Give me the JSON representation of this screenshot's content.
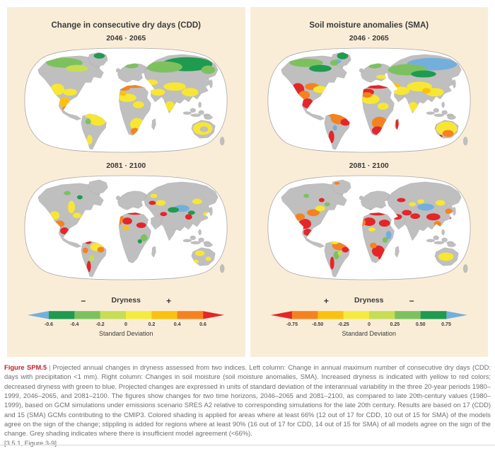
{
  "figure": {
    "columns": [
      {
        "title": "Change in consecutive dry days (CDD)",
        "maps": [
          {
            "period": "2046 · 2065"
          },
          {
            "period": "2081 · 2100"
          }
        ],
        "colorbar": {
          "sign_left": "−",
          "title": "Dryness",
          "sign_right": "+",
          "ticks": [
            "-0.6",
            "-0.4",
            "-0.2",
            "0",
            "0.2",
            "0.4",
            "0.6"
          ],
          "segment_colors": [
            "#1E9B4F",
            "#7DC15F",
            "#C6DD55",
            "#F5EB3E",
            "#FCC10E",
            "#F58220"
          ],
          "arrow_left_color": "#74AFDC",
          "arrow_right_color": "#E62528",
          "axis_label": "Standard Deviation"
        }
      },
      {
        "title": "Soil moisture anomalies (SMA)",
        "maps": [
          {
            "period": "2046 · 2065"
          },
          {
            "period": "2081 · 2100"
          }
        ],
        "colorbar": {
          "sign_left": "+",
          "title": "Dryness",
          "sign_right": "−",
          "ticks": [
            "-0.75",
            "-0.50",
            "-0.25",
            "0",
            "0.25",
            "0.50",
            "0.75"
          ],
          "segment_colors": [
            "#F58220",
            "#FCC10E",
            "#F5EB3E",
            "#C6DD55",
            "#7DC15F",
            "#1E9B4F"
          ],
          "arrow_left_color": "#E62528",
          "arrow_right_color": "#74AFDC",
          "axis_label": "Standard Deviation"
        }
      }
    ]
  },
  "caption": {
    "label": "Figure SPM.5",
    "separator": "|",
    "text": "Projected annual changes in dryness assessed from two indices. Left column: Change in annual maximum number of consecutive dry days (CDD: days with precipitation <1 mm). Right column: Changes in soil moisture (soil moisture anomalies, SMA). Increased dryness is indicated with yellow to red colors; decreased dryness with green to blue. Projected changes are expressed in units of standard deviation of the interannual variability in the three 20-year periods 1980–1999, 2046–2065, and 2081–2100. The figures show changes for two time horizons, 2046–2065 and 2081–2100, as compared to late 20th-century values (1980–1999), based on GCM simulations under emissions scenario SRES A2 relative to corresponding simulations for the late 20th century. Results are based on 17 (CDD) and 15 (SMA) GCMs contributing to the CMIP3. Colored shading is applied for areas where at least 66% (12 out of 17 for CDD, 10 out of 15 for SMA) of the models agree on the sign of the change; stippling is added for regions where at least 90% (16 out of 17 for CDD, 14 out of 15 for SMA) of all models agree on the sign of the change. Grey shading indicates where there is insufficient model agreement (<66%).",
    "reference": "[3.5.1, Figure 3-9]"
  },
  "chart_data": {
    "type": "heatmap",
    "title": "Projected annual changes in dryness (standard deviation units)",
    "scales": [
      {
        "panel": "CDD",
        "range": [
          -0.6,
          0.6
        ],
        "step": 0.2,
        "increase_dryness": "yellow-to-red (positive)",
        "decrease_dryness": "green-to-blue (negative)"
      },
      {
        "panel": "SMA",
        "range": [
          -0.75,
          0.75
        ],
        "step": 0.25,
        "increase_dryness": "yellow-to-red (negative)",
        "decrease_dryness": "green-to-blue (positive)"
      }
    ],
    "palette": {
      "DG": "#1E9B4F",
      "G": "#7DC15F",
      "LG": "#C6DD55",
      "Y": "#F7E733",
      "GO": "#FCC10E",
      "O": "#F58220",
      "R": "#E62528",
      "B": "#74AFDC",
      "LAND": "#BFBFBF"
    },
    "maps": [
      {
        "name": "CDD 2046-2065",
        "patches": [
          [
            238,
            26,
            36,
            10,
            "DG"
          ],
          [
            205,
            30,
            26,
            8,
            "G"
          ],
          [
            158,
            28,
            10,
            4,
            "G"
          ],
          [
            268,
            34,
            10,
            6,
            "G"
          ],
          [
            62,
            24,
            26,
            7,
            "G"
          ],
          [
            80,
            32,
            16,
            5,
            "LG"
          ],
          [
            112,
            14,
            8,
            4,
            "DG"
          ],
          [
            52,
            62,
            10,
            8,
            "Y"
          ],
          [
            70,
            66,
            10,
            5,
            "Y"
          ],
          [
            62,
            80,
            8,
            7,
            "GO"
          ],
          [
            64,
            90,
            5,
            4,
            "O"
          ],
          [
            162,
            56,
            18,
            4,
            "O"
          ],
          [
            148,
            60,
            8,
            4,
            "O"
          ],
          [
            186,
            52,
            10,
            4,
            "Y"
          ],
          [
            196,
            66,
            10,
            5,
            "Y"
          ],
          [
            220,
            58,
            16,
            6,
            "Y"
          ],
          [
            242,
            66,
            12,
            6,
            "Y"
          ],
          [
            213,
            86,
            7,
            7,
            "Y"
          ],
          [
            152,
            74,
            13,
            6,
            "Y"
          ],
          [
            168,
            84,
            8,
            5,
            "Y"
          ],
          [
            146,
            68,
            5,
            3,
            "GO"
          ],
          [
            166,
            112,
            10,
            9,
            "Y"
          ],
          [
            163,
            122,
            6,
            5,
            "O"
          ],
          [
            110,
            106,
            12,
            8,
            "Y"
          ],
          [
            98,
            99,
            7,
            4,
            "Y"
          ],
          [
            98,
            134,
            4,
            7,
            "Y"
          ],
          [
            96,
            108,
            4,
            4,
            "G"
          ],
          [
            260,
            118,
            14,
            9,
            "Y"
          ],
          [
            262,
            119,
            6,
            4,
            "LAND"
          ]
        ]
      },
      {
        "name": "SMA 2046-2065",
        "patches": [
          [
            163,
            55,
            13,
            4,
            "R"
          ],
          [
            152,
            68,
            7,
            5,
            "R"
          ],
          [
            172,
            74,
            7,
            4,
            "R"
          ],
          [
            142,
            64,
            5,
            4,
            "O"
          ],
          [
            150,
            78,
            5,
            3,
            "GO"
          ],
          [
            62,
            82,
            6,
            5,
            "R"
          ],
          [
            55,
            72,
            7,
            5,
            "O"
          ],
          [
            48,
            60,
            7,
            6,
            "Y"
          ],
          [
            72,
            48,
            5,
            9,
            "Y"
          ],
          [
            80,
            60,
            6,
            4,
            "Y"
          ],
          [
            66,
            28,
            5,
            3,
            "G"
          ],
          [
            84,
            34,
            4,
            3,
            "DG"
          ],
          [
            96,
            97,
            5,
            4,
            "R"
          ],
          [
            108,
            105,
            9,
            6,
            "Y"
          ],
          [
            114,
            109,
            5,
            4,
            "O"
          ],
          [
            92,
            110,
            4,
            4,
            "O"
          ],
          [
            97,
            133,
            3,
            8,
            "R"
          ],
          [
            101,
            121,
            4,
            4,
            "LG"
          ],
          [
            230,
            50,
            11,
            5,
            "B"
          ],
          [
            218,
            52,
            8,
            4,
            "DG"
          ],
          [
            244,
            56,
            5,
            3,
            "DG"
          ],
          [
            240,
            62,
            5,
            4,
            "R"
          ],
          [
            204,
            58,
            5,
            3,
            "R"
          ],
          [
            188,
            42,
            5,
            3,
            "R"
          ],
          [
            200,
            42,
            7,
            4,
            "Y"
          ],
          [
            252,
            40,
            7,
            4,
            "Y"
          ],
          [
            266,
            58,
            5,
            3,
            "Y"
          ],
          [
            190,
            32,
            5,
            3,
            "Y"
          ],
          [
            176,
            92,
            5,
            5,
            "G"
          ],
          [
            170,
            97,
            3,
            3,
            "DG"
          ],
          [
            140,
            70,
            4,
            4,
            "O"
          ],
          [
            256,
            114,
            7,
            4,
            "Y"
          ],
          [
            268,
            122,
            4,
            3,
            "Y"
          ],
          [
            250,
            126,
            4,
            3,
            "Y"
          ]
        ]
      },
      {
        "name": "CDD 2081-2100",
        "patches": [
          [
            240,
            26,
            36,
            9,
            "B"
          ],
          [
            205,
            34,
            28,
            8,
            "G"
          ],
          [
            228,
            40,
            18,
            5,
            "DG"
          ],
          [
            104,
            22,
            6,
            3,
            "B"
          ],
          [
            60,
            24,
            24,
            6,
            "G"
          ],
          [
            80,
            32,
            16,
            5,
            "DG"
          ],
          [
            112,
            14,
            8,
            5,
            "DG"
          ],
          [
            100,
            24,
            6,
            4,
            "G"
          ],
          [
            158,
            28,
            10,
            4,
            "G"
          ],
          [
            48,
            62,
            9,
            9,
            "R"
          ],
          [
            57,
            70,
            8,
            6,
            "O"
          ],
          [
            62,
            82,
            8,
            7,
            "R"
          ],
          [
            68,
            58,
            10,
            5,
            "O"
          ],
          [
            80,
            62,
            10,
            5,
            "Y"
          ],
          [
            162,
            56,
            20,
            5,
            "R"
          ],
          [
            148,
            66,
            9,
            5,
            "R"
          ],
          [
            168,
            44,
            8,
            3,
            "Y"
          ],
          [
            188,
            56,
            6,
            3,
            "GO"
          ],
          [
            196,
            64,
            12,
            6,
            "Y"
          ],
          [
            222,
            58,
            18,
            7,
            "Y"
          ],
          [
            244,
            66,
            13,
            6,
            "Y"
          ],
          [
            232,
            64,
            6,
            4,
            "GO"
          ],
          [
            213,
            87,
            7,
            7,
            "Y"
          ],
          [
            270,
            76,
            6,
            4,
            "Y"
          ],
          [
            152,
            76,
            13,
            7,
            "Y"
          ],
          [
            147,
            70,
            7,
            4,
            "O"
          ],
          [
            170,
            86,
            8,
            5,
            "Y"
          ],
          [
            165,
            110,
            11,
            9,
            "O"
          ],
          [
            162,
            121,
            8,
            6,
            "R"
          ],
          [
            190,
            112,
            2,
            7,
            "R"
          ],
          [
            108,
            104,
            13,
            8,
            "O"
          ],
          [
            116,
            109,
            7,
            5,
            "R"
          ],
          [
            97,
            97,
            6,
            5,
            "O"
          ],
          [
            96,
            130,
            4,
            9,
            "R"
          ],
          [
            101,
            117,
            3,
            4,
            "B"
          ],
          [
            261,
            118,
            15,
            10,
            "Y"
          ],
          [
            263,
            125,
            8,
            5,
            "O"
          ],
          [
            252,
            129,
            3,
            2,
            "R"
          ]
        ]
      },
      {
        "name": "SMA 2081-2100",
        "patches": [
          [
            162,
            55,
            15,
            5,
            "R"
          ],
          [
            150,
            69,
            9,
            6,
            "R"
          ],
          [
            172,
            71,
            8,
            5,
            "R"
          ],
          [
            190,
            62,
            7,
            4,
            "R"
          ],
          [
            204,
            56,
            7,
            4,
            "R"
          ],
          [
            216,
            61,
            7,
            4,
            "R"
          ],
          [
            242,
            62,
            10,
            5,
            "R"
          ],
          [
            231,
            48,
            12,
            5,
            "B"
          ],
          [
            252,
            42,
            7,
            4,
            "Y"
          ],
          [
            196,
            38,
            6,
            3,
            "R"
          ],
          [
            212,
            44,
            5,
            3,
            "Y"
          ],
          [
            264,
            54,
            5,
            4,
            "O"
          ],
          [
            270,
            66,
            5,
            4,
            "R"
          ],
          [
            248,
            72,
            5,
            4,
            "O"
          ],
          [
            224,
            40,
            5,
            3,
            "Y"
          ],
          [
            140,
            70,
            5,
            5,
            "O"
          ],
          [
            154,
            80,
            5,
            3,
            "Y"
          ],
          [
            58,
            72,
            9,
            7,
            "R"
          ],
          [
            51,
            62,
            7,
            5,
            "O"
          ],
          [
            70,
            56,
            9,
            5,
            "O"
          ],
          [
            80,
            50,
            7,
            4,
            "Y"
          ],
          [
            62,
            84,
            6,
            5,
            "R"
          ],
          [
            82,
            38,
            4,
            3,
            "R"
          ],
          [
            60,
            32,
            4,
            3,
            "G"
          ],
          [
            90,
            44,
            4,
            3,
            "G"
          ],
          [
            104,
            14,
            4,
            2,
            "O"
          ],
          [
            108,
            103,
            11,
            7,
            "O"
          ],
          [
            101,
            96,
            7,
            5,
            "Y"
          ],
          [
            116,
            109,
            5,
            4,
            "R"
          ],
          [
            97,
            128,
            3,
            9,
            "R"
          ],
          [
            103,
            117,
            4,
            6,
            "G"
          ],
          [
            108,
            114,
            3,
            3,
            "LG"
          ],
          [
            163,
            111,
            9,
            8,
            "R"
          ],
          [
            156,
            103,
            5,
            4,
            "O"
          ],
          [
            168,
            120,
            5,
            4,
            "R"
          ],
          [
            178,
            88,
            4,
            6,
            "B"
          ],
          [
            173,
            95,
            4,
            4,
            "G"
          ],
          [
            260,
            119,
            11,
            6,
            "Y"
          ]
        ]
      }
    ]
  }
}
